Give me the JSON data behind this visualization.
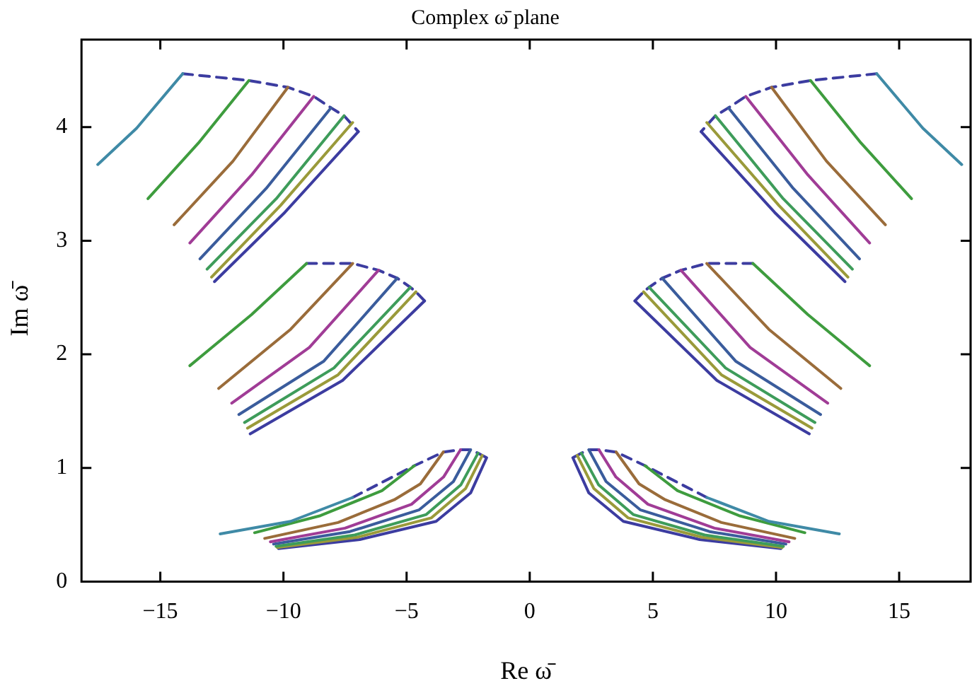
{
  "chart_data": {
    "type": "line",
    "title": "Complex ω̄ plane",
    "xlabel": "Re ω̄",
    "ylabel": "Im ω̄",
    "xlim": [
      -18.2,
      17.9
    ],
    "ylim": [
      0,
      4.77
    ],
    "xticks": [
      {
        "value": -15,
        "label": "−15"
      },
      {
        "value": -10,
        "label": "−10"
      },
      {
        "value": -5,
        "label": "−5"
      },
      0,
      5,
      10,
      15
    ],
    "yticks": [
      0,
      1,
      2,
      3,
      4
    ],
    "grid": false,
    "marker": "none",
    "line_style": "solid",
    "series": [
      {
        "color": "#3f8aa6",
        "x": [
          -17.54,
          -15.96,
          -14.09
        ],
        "values": [
          3.67,
          3.99,
          4.47
        ]
      },
      {
        "color": "#3e9c3e",
        "x": [
          -15.5,
          -13.45,
          -11.4
        ],
        "values": [
          3.37,
          3.86,
          4.41
        ]
      },
      {
        "color": "#9a6c3a",
        "x": [
          -14.44,
          -12.05,
          -9.82
        ],
        "values": [
          3.14,
          3.7,
          4.35
        ]
      },
      {
        "color": "#a03c96",
        "x": [
          -13.8,
          -11.29,
          -8.77
        ],
        "values": [
          2.98,
          3.58,
          4.27
        ]
      },
      {
        "color": "#3a5c9c",
        "x": [
          -13.39,
          -10.7,
          -8.07
        ],
        "values": [
          2.84,
          3.46,
          4.17
        ]
      },
      {
        "color": "#3e9c5a",
        "x": [
          -13.1,
          -10.29,
          -7.54
        ],
        "values": [
          2.75,
          3.37,
          4.1
        ]
      },
      {
        "color": "#9a9a3a",
        "x": [
          -12.92,
          -10.12,
          -7.19
        ],
        "values": [
          2.68,
          3.31,
          4.04
        ]
      },
      {
        "color": "#3c3ca0",
        "x": [
          -12.8,
          -9.94,
          -6.96
        ],
        "values": [
          2.64,
          3.25,
          3.96
        ]
      },
      {
        "color": "#3c3ca0",
        "line_style": "dashed",
        "x": [
          -14.09,
          -11.4,
          -9.82,
          -8.77,
          -8.07,
          -7.54,
          -6.96
        ],
        "values": [
          4.47,
          4.41,
          4.35,
          4.27,
          4.17,
          4.1,
          3.96
        ]
      },
      {
        "color": "#3e9c3e",
        "x": [
          -13.8,
          -11.29,
          -9.06
        ],
        "values": [
          1.9,
          2.35,
          2.8
        ]
      },
      {
        "color": "#9a6c3a",
        "x": [
          -12.63,
          -9.71,
          -7.19
        ],
        "values": [
          1.7,
          2.22,
          2.8
        ]
      },
      {
        "color": "#a03c96",
        "x": [
          -12.1,
          -8.95,
          -6.14
        ],
        "values": [
          1.57,
          2.06,
          2.74
        ]
      },
      {
        "color": "#3a5c9c",
        "x": [
          -11.81,
          -8.36,
          -5.38
        ],
        "values": [
          1.47,
          1.94,
          2.67
        ]
      },
      {
        "color": "#3e9c5a",
        "x": [
          -11.58,
          -7.95,
          -4.85
        ],
        "values": [
          1.4,
          1.88,
          2.59
        ]
      },
      {
        "color": "#9a9a3a",
        "x": [
          -11.46,
          -7.78,
          -4.62
        ],
        "values": [
          1.35,
          1.82,
          2.55
        ]
      },
      {
        "color": "#3c3ca0",
        "x": [
          -11.35,
          -7.6,
          -4.27
        ],
        "values": [
          1.3,
          1.77,
          2.47
        ]
      },
      {
        "color": "#3c3ca0",
        "line_style": "dashed",
        "x": [
          -9.06,
          -7.19,
          -6.14,
          -5.38,
          -4.85,
          -4.62,
          -4.27
        ],
        "values": [
          2.8,
          2.8,
          2.74,
          2.67,
          2.59,
          2.55,
          2.47
        ]
      },
      {
        "color": "#3f8aa6",
        "x": [
          -12.57,
          -9.71,
          -7.19
        ],
        "values": [
          0.42,
          0.53,
          0.74
        ]
      },
      {
        "color": "#3e9c3e",
        "x": [
          -11.17,
          -8.5,
          -6,
          -4.68
        ],
        "values": [
          0.43,
          0.58,
          0.8,
          1.02
        ]
      },
      {
        "color": "#9a6c3a",
        "x": [
          -10.76,
          -7.78,
          -5.5,
          -4.44,
          -3.51
        ],
        "values": [
          0.38,
          0.52,
          0.72,
          0.86,
          1.14
        ]
      },
      {
        "color": "#a03c96",
        "x": [
          -10.53,
          -7.5,
          -4.8,
          -3.5,
          -2.81
        ],
        "values": [
          0.35,
          0.47,
          0.68,
          0.92,
          1.16
        ]
      },
      {
        "color": "#3a5c9c",
        "x": [
          -10.4,
          -7.3,
          -4.5,
          -3.1,
          -2.4
        ],
        "values": [
          0.33,
          0.44,
          0.63,
          0.88,
          1.16
        ]
      },
      {
        "color": "#3e9c5a",
        "x": [
          -10.3,
          -7.1,
          -4.2,
          -2.8,
          -2.1
        ],
        "values": [
          0.31,
          0.41,
          0.59,
          0.85,
          1.13
        ]
      },
      {
        "color": "#9a9a3a",
        "x": [
          -10.25,
          -7,
          -4,
          -2.6,
          -1.93
        ],
        "values": [
          0.3,
          0.39,
          0.56,
          0.82,
          1.11
        ]
      },
      {
        "color": "#3c3ca0",
        "x": [
          -10.2,
          -6.9,
          -3.8,
          -2.4,
          -1.75
        ],
        "values": [
          0.29,
          0.37,
          0.53,
          0.78,
          1.09
        ]
      },
      {
        "color": "#3c3ca0",
        "line_style": "dashed",
        "x": [
          -7.19,
          -4.68,
          -3.51,
          -2.81,
          -2.4,
          -2.1,
          -1.93,
          -1.75
        ],
        "values": [
          0.74,
          1.02,
          1.14,
          1.16,
          1.16,
          1.13,
          1.11,
          1.09
        ]
      },
      {
        "color": "#3f8aa6",
        "x": [
          17.54,
          15.96,
          14.09
        ],
        "values": [
          3.67,
          3.99,
          4.47
        ]
      },
      {
        "color": "#3e9c3e",
        "x": [
          15.5,
          13.45,
          11.4
        ],
        "values": [
          3.37,
          3.86,
          4.41
        ]
      },
      {
        "color": "#9a6c3a",
        "x": [
          14.44,
          12.05,
          9.82
        ],
        "values": [
          3.14,
          3.7,
          4.35
        ]
      },
      {
        "color": "#a03c96",
        "x": [
          13.8,
          11.29,
          8.77
        ],
        "values": [
          2.98,
          3.58,
          4.27
        ]
      },
      {
        "color": "#3a5c9c",
        "x": [
          13.39,
          10.7,
          8.07
        ],
        "values": [
          2.84,
          3.46,
          4.17
        ]
      },
      {
        "color": "#3e9c5a",
        "x": [
          13.1,
          10.29,
          7.54
        ],
        "values": [
          2.75,
          3.37,
          4.1
        ]
      },
      {
        "color": "#9a9a3a",
        "x": [
          12.92,
          10.12,
          7.19
        ],
        "values": [
          2.68,
          3.31,
          4.04
        ]
      },
      {
        "color": "#3c3ca0",
        "x": [
          12.8,
          9.94,
          6.96
        ],
        "values": [
          2.64,
          3.25,
          3.96
        ]
      },
      {
        "color": "#3c3ca0",
        "line_style": "dashed",
        "x": [
          14.09,
          11.4,
          9.82,
          8.77,
          8.07,
          7.54,
          6.96
        ],
        "values": [
          4.47,
          4.41,
          4.35,
          4.27,
          4.17,
          4.1,
          3.96
        ]
      },
      {
        "color": "#3e9c3e",
        "x": [
          13.8,
          11.29,
          9.06
        ],
        "values": [
          1.9,
          2.35,
          2.8
        ]
      },
      {
        "color": "#9a6c3a",
        "x": [
          12.63,
          9.71,
          7.19
        ],
        "values": [
          1.7,
          2.22,
          2.8
        ]
      },
      {
        "color": "#a03c96",
        "x": [
          12.1,
          8.95,
          6.14
        ],
        "values": [
          1.57,
          2.06,
          2.74
        ]
      },
      {
        "color": "#3a5c9c",
        "x": [
          11.81,
          8.36,
          5.38
        ],
        "values": [
          1.47,
          1.94,
          2.67
        ]
      },
      {
        "color": "#3e9c5a",
        "x": [
          11.58,
          7.95,
          4.85
        ],
        "values": [
          1.4,
          1.88,
          2.59
        ]
      },
      {
        "color": "#9a9a3a",
        "x": [
          11.46,
          7.78,
          4.62
        ],
        "values": [
          1.35,
          1.82,
          2.55
        ]
      },
      {
        "color": "#3c3ca0",
        "x": [
          11.35,
          7.6,
          4.27
        ],
        "values": [
          1.3,
          1.77,
          2.47
        ]
      },
      {
        "color": "#3c3ca0",
        "line_style": "dashed",
        "x": [
          9.06,
          7.19,
          6.14,
          5.38,
          4.85,
          4.62,
          4.27
        ],
        "values": [
          2.8,
          2.8,
          2.74,
          2.67,
          2.59,
          2.55,
          2.47
        ]
      },
      {
        "color": "#3f8aa6",
        "x": [
          12.57,
          9.71,
          7.19
        ],
        "values": [
          0.42,
          0.53,
          0.74
        ]
      },
      {
        "color": "#3e9c3e",
        "x": [
          11.17,
          8.5,
          6,
          4.68
        ],
        "values": [
          0.43,
          0.58,
          0.8,
          1.02
        ]
      },
      {
        "color": "#9a6c3a",
        "x": [
          10.76,
          7.78,
          5.5,
          4.44,
          3.51
        ],
        "values": [
          0.38,
          0.52,
          0.72,
          0.86,
          1.14
        ]
      },
      {
        "color": "#a03c96",
        "x": [
          10.53,
          7.5,
          4.8,
          3.5,
          2.81
        ],
        "values": [
          0.35,
          0.47,
          0.68,
          0.92,
          1.16
        ]
      },
      {
        "color": "#3a5c9c",
        "x": [
          10.4,
          7.3,
          4.5,
          3.1,
          2.4
        ],
        "values": [
          0.33,
          0.44,
          0.63,
          0.88,
          1.16
        ]
      },
      {
        "color": "#3e9c5a",
        "x": [
          10.3,
          7.1,
          4.2,
          2.8,
          2.1
        ],
        "values": [
          0.31,
          0.41,
          0.59,
          0.85,
          1.13
        ]
      },
      {
        "color": "#9a9a3a",
        "x": [
          10.25,
          7,
          4,
          2.6,
          1.93
        ],
        "values": [
          0.3,
          0.39,
          0.56,
          0.82,
          1.11
        ]
      },
      {
        "color": "#3c3ca0",
        "x": [
          10.2,
          6.9,
          3.8,
          2.4,
          1.75
        ],
        "values": [
          0.29,
          0.37,
          0.53,
          0.78,
          1.09
        ]
      },
      {
        "color": "#3c3ca0",
        "line_style": "dashed",
        "x": [
          7.19,
          4.68,
          3.51,
          2.81,
          2.4,
          2.1,
          1.93,
          1.75
        ],
        "values": [
          0.74,
          1.02,
          1.14,
          1.16,
          1.16,
          1.13,
          1.11,
          1.09
        ]
      }
    ]
  }
}
